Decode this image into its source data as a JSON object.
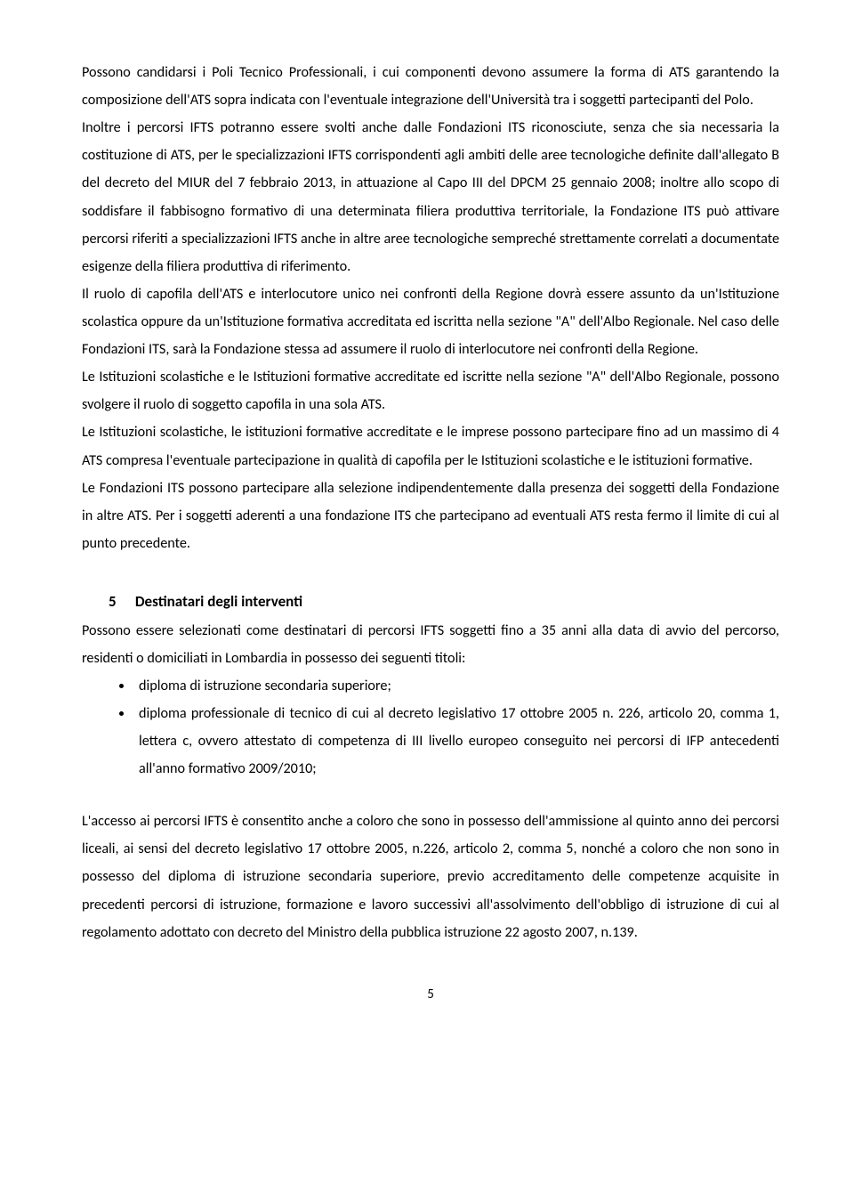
{
  "paragraphs": {
    "p1": "Possono candidarsi i Poli Tecnico Professionali, i cui componenti devono assumere la forma di ATS garantendo la composizione dell'ATS sopra indicata con l'eventuale integrazione dell'Università tra i soggetti partecipanti del Polo.",
    "p2": "Inoltre i percorsi IFTS potranno essere svolti anche dalle Fondazioni ITS riconosciute, senza che sia necessaria la costituzione di ATS, per le specializzazioni IFTS corrispondenti agli ambiti delle aree tecnologiche definite dall'allegato B del decreto del MIUR del 7 febbraio 2013, in attuazione al Capo III del DPCM 25 gennaio 2008; inoltre allo scopo di soddisfare il fabbisogno formativo di una determinata filiera produttiva territoriale, la Fondazione ITS può attivare percorsi riferiti a specializzazioni IFTS anche in altre aree tecnologiche sempreché strettamente correlati a documentate esigenze della filiera produttiva di riferimento.",
    "p3": "Il ruolo di capofila dell'ATS e interlocutore unico nei confronti della Regione dovrà essere assunto da un'Istituzione scolastica oppure da un'Istituzione formativa accreditata ed iscritta nella sezione \"A\" dell'Albo Regionale. Nel caso delle Fondazioni ITS, sarà la Fondazione stessa ad assumere il ruolo di interlocutore nei confronti della Regione.",
    "p4": "Le Istituzioni scolastiche e le Istituzioni formative accreditate ed iscritte nella sezione \"A\" dell'Albo Regionale, possono svolgere il ruolo di soggetto capofila in una sola ATS.",
    "p5": "Le Istituzioni scolastiche, le istituzioni formative accreditate e le imprese possono partecipare fino ad un massimo di 4 ATS compresa l'eventuale partecipazione in qualità di capofila per le Istituzioni scolastiche e le istituzioni formative.",
    "p6": "Le Fondazioni ITS possono partecipare alla selezione indipendentemente dalla presenza dei soggetti della Fondazione in altre ATS. Per i soggetti aderenti a una fondazione ITS che partecipano ad eventuali ATS resta fermo il limite di cui al punto precedente."
  },
  "section5": {
    "number": "5",
    "title": "Destinatari degli interventi",
    "intro": "Possono essere selezionati come destinatari di percorsi IFTS soggetti fino a 35 anni alla data di avvio del percorso, residenti o domiciliati in Lombardia in possesso dei seguenti titoli:",
    "bullets": {
      "b1": "diploma di istruzione secondaria superiore;",
      "b2": "diploma professionale di tecnico di cui al decreto legislativo 17 ottobre 2005 n. 226, articolo 20, comma 1, lettera c, ovvero attestato di competenza di III livello europeo conseguito nei percorsi di IFP antecedenti all'anno formativo 2009/2010;"
    },
    "closing": "L'accesso ai percorsi IFTS è consentito anche a coloro che sono in possesso dell'ammissione al quinto anno dei percorsi liceali, ai sensi del decreto legislativo 17 ottobre 2005, n.226, articolo 2, comma 5, nonché a coloro che non sono in possesso del diploma di istruzione secondaria superiore, previo accreditamento delle competenze acquisite in precedenti percorsi di istruzione, formazione e lavoro successivi all'assolvimento dell'obbligo di istruzione di cui al regolamento adottato con decreto del Ministro della pubblica istruzione 22 agosto 2007, n.139."
  },
  "pageNumber": "5"
}
